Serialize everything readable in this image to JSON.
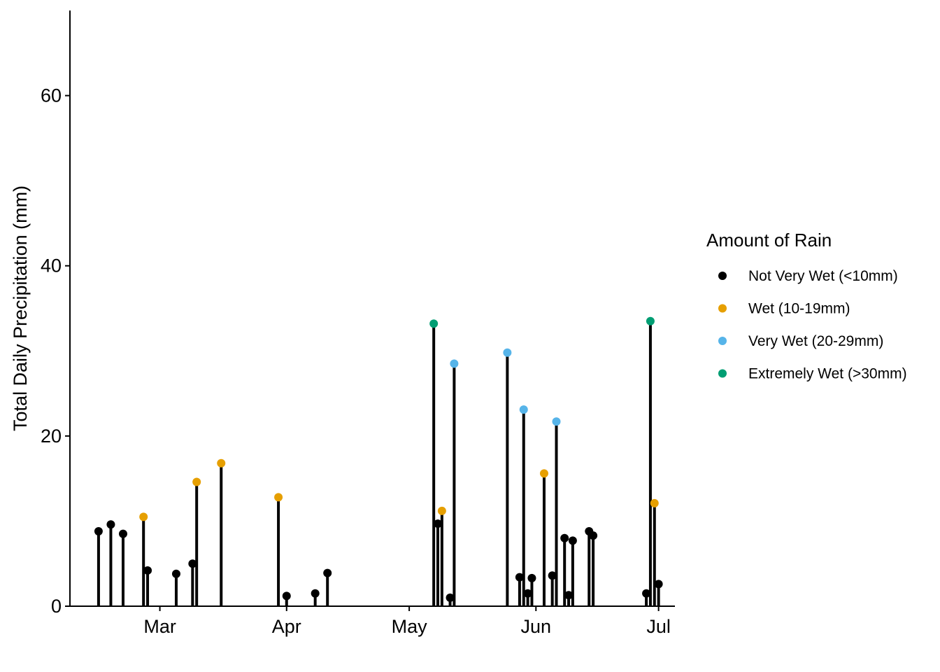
{
  "chart_data": {
    "type": "scatter",
    "subtype": "lollipop",
    "title": "",
    "xlabel": "",
    "ylabel": "Total Daily Precipitation (mm)",
    "ylim": [
      0,
      70
    ],
    "yticks": [
      0,
      20,
      40,
      60
    ],
    "ytick_labels": [
      "0",
      "20",
      "40",
      "60"
    ],
    "xlim": [
      "2023-02-07",
      "2023-07-05"
    ],
    "xticks": [
      "2023-03-01",
      "2023-04-01",
      "2023-05-01",
      "2023-06-01",
      "2023-07-01"
    ],
    "xtick_labels": [
      "Mar",
      "Apr",
      "May",
      "Jun",
      "Jul"
    ],
    "grid": false,
    "legend": {
      "title": "Amount of Rain",
      "position": "right"
    },
    "categories": [
      {
        "key": "not",
        "label": "Not Very Wet (<10mm)",
        "color": "#000000"
      },
      {
        "key": "wet",
        "label": "Wet (10-19mm)",
        "color": "#E69F00"
      },
      {
        "key": "very",
        "label": "Very Wet (20-29mm)",
        "color": "#56B4E9"
      },
      {
        "key": "ext",
        "label": "Extremely Wet (>30mm)",
        "color": "#009E73"
      }
    ],
    "points": [
      {
        "date": "2023-02-14",
        "value": 8.8,
        "cat": "not"
      },
      {
        "date": "2023-02-17",
        "value": 9.6,
        "cat": "not"
      },
      {
        "date": "2023-02-20",
        "value": 8.5,
        "cat": "not"
      },
      {
        "date": "2023-02-25",
        "value": 10.5,
        "cat": "wet"
      },
      {
        "date": "2023-02-26",
        "value": 4.2,
        "cat": "not"
      },
      {
        "date": "2023-03-05",
        "value": 3.8,
        "cat": "not"
      },
      {
        "date": "2023-03-09",
        "value": 5.0,
        "cat": "not"
      },
      {
        "date": "2023-03-10",
        "value": 14.6,
        "cat": "wet"
      },
      {
        "date": "2023-03-16",
        "value": 16.8,
        "cat": "wet"
      },
      {
        "date": "2023-03-30",
        "value": 12.8,
        "cat": "wet"
      },
      {
        "date": "2023-04-01",
        "value": 1.2,
        "cat": "not"
      },
      {
        "date": "2023-04-08",
        "value": 1.5,
        "cat": "not"
      },
      {
        "date": "2023-04-11",
        "value": 3.9,
        "cat": "not"
      },
      {
        "date": "2023-05-07",
        "value": 33.2,
        "cat": "ext"
      },
      {
        "date": "2023-05-08",
        "value": 9.7,
        "cat": "not"
      },
      {
        "date": "2023-05-09",
        "value": 11.2,
        "cat": "wet"
      },
      {
        "date": "2023-05-11",
        "value": 1.0,
        "cat": "not"
      },
      {
        "date": "2023-05-12",
        "value": 28.5,
        "cat": "very"
      },
      {
        "date": "2023-05-25",
        "value": 29.8,
        "cat": "very"
      },
      {
        "date": "2023-05-28",
        "value": 3.4,
        "cat": "not"
      },
      {
        "date": "2023-05-29",
        "value": 23.1,
        "cat": "very"
      },
      {
        "date": "2023-05-30",
        "value": 1.5,
        "cat": "not"
      },
      {
        "date": "2023-05-31",
        "value": 3.3,
        "cat": "not"
      },
      {
        "date": "2023-06-03",
        "value": 15.6,
        "cat": "wet"
      },
      {
        "date": "2023-06-05",
        "value": 3.6,
        "cat": "not"
      },
      {
        "date": "2023-06-06",
        "value": 21.7,
        "cat": "very"
      },
      {
        "date": "2023-06-08",
        "value": 8.0,
        "cat": "not"
      },
      {
        "date": "2023-06-09",
        "value": 1.3,
        "cat": "not"
      },
      {
        "date": "2023-06-10",
        "value": 7.7,
        "cat": "not"
      },
      {
        "date": "2023-06-14",
        "value": 8.8,
        "cat": "not"
      },
      {
        "date": "2023-06-15",
        "value": 8.3,
        "cat": "not"
      },
      {
        "date": "2023-06-28",
        "value": 1.5,
        "cat": "not"
      },
      {
        "date": "2023-06-29",
        "value": 33.5,
        "cat": "ext"
      },
      {
        "date": "2023-06-30",
        "value": 12.1,
        "cat": "wet"
      },
      {
        "date": "2023-07-01",
        "value": 2.6,
        "cat": "not"
      }
    ]
  }
}
